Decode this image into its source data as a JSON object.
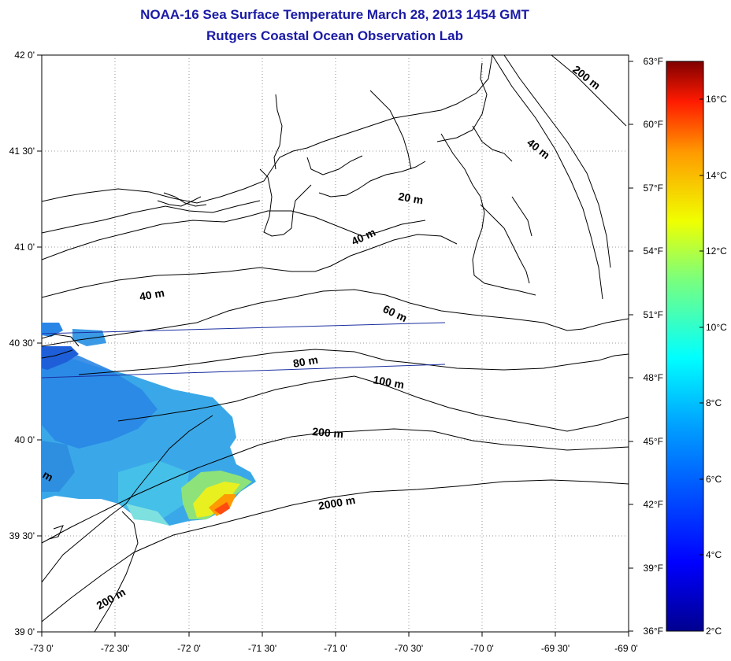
{
  "title_line1": "NOAA-16 Sea Surface Temperature March 28, 2013 1454 GMT",
  "title_line2": "Rutgers Coastal Ocean Observation Lab",
  "lat_labels": [
    "42 0'",
    "41 30'",
    "41 0'",
    "40 30'",
    "40 0'",
    "39 30'",
    "39 0'"
  ],
  "lon_labels": [
    "-73 0'",
    "-72 30'",
    "-72 0'",
    "-71 30'",
    "-71 0'",
    "-70 30'",
    "-70 0'",
    "-69 30'",
    "-69 0'"
  ],
  "fahrenheit_labels": [
    "63°F",
    "60°F",
    "57°F",
    "54°F",
    "51°F",
    "48°F",
    "45°F",
    "42°F",
    "39°F",
    "36°F"
  ],
  "celsius_labels": [
    "16°C",
    "14°C",
    "12°C",
    "10°C",
    "8°C",
    "6°C",
    "4°C",
    "2°C"
  ],
  "contour_labels": {
    "c200_ne": "200 m",
    "c40_ne": "40 m",
    "c20": "20 m",
    "c40_mid": "40 m",
    "c40_w": "40 m",
    "c60": "60 m",
    "c80": "80 m",
    "c100": "100 m",
    "c200_mid": "200 m",
    "c2000": "2000 m",
    "c200_sw": "200 m",
    "cm_edge": "m"
  },
  "colors": {
    "title": "#1a1aa6",
    "transect": "#1a2fa0",
    "contour": "#000000"
  }
}
